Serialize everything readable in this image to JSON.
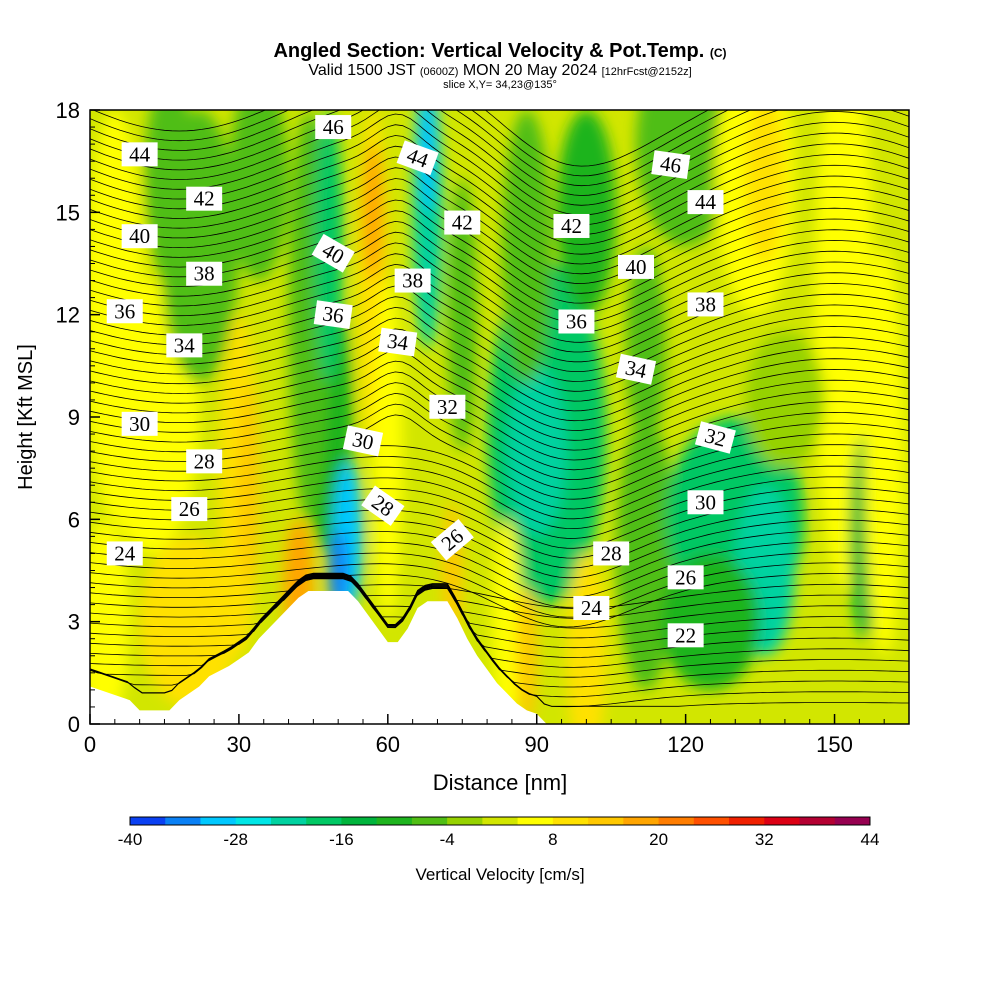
{
  "title": {
    "main": "Angled Section: Vertical Velocity & Pot.Temp.",
    "main_suffix": "(C)",
    "valid_prefix": "Valid 1500 JST",
    "valid_utc": "(0600Z)",
    "valid_date": "MON 20 May 2024",
    "forecast": "[12hrFcst@2152z]",
    "slice": "slice X,Y= 34,23@135°"
  },
  "colorbar": {
    "label": "Vertical Velocity [cm/s]",
    "tick_labels": [
      "-40",
      "-28",
      "-16",
      "-4",
      "8",
      "20",
      "32",
      "44"
    ],
    "tick_values": [
      -40,
      -28,
      -16,
      -4,
      8,
      20,
      32,
      44
    ],
    "levels": [
      -40,
      -36,
      -32,
      -28,
      -24,
      -20,
      -16,
      -12,
      -8,
      -4,
      0,
      4,
      8,
      12,
      16,
      20,
      24,
      28,
      32,
      36,
      40,
      44
    ],
    "colors": [
      "#0000ff",
      "#0a40f2",
      "#0a80f5",
      "#00c8ff",
      "#00e6e6",
      "#00d2a0",
      "#00c864",
      "#00b43c",
      "#1eb41e",
      "#50be14",
      "#96d200",
      "#d2e600",
      "#ffff00",
      "#ffe100",
      "#ffc800",
      "#ffa500",
      "#ff7d00",
      "#ff5000",
      "#f02000",
      "#dc0014",
      "#b40032",
      "#960050",
      "#780078",
      "#5a0096"
    ]
  },
  "chart_data": {
    "type": "heatmap",
    "title": "Angled Section: Vertical Velocity & Pot.Temp.",
    "xlabel": "Distance [nm]",
    "ylabel": "Height [Kft MSL]",
    "xlim": [
      0,
      165
    ],
    "ylim": [
      0,
      18
    ],
    "x_ticks": [
      0,
      30,
      60,
      90,
      120,
      150
    ],
    "y_ticks": [
      0,
      3,
      6,
      9,
      12,
      15,
      18
    ],
    "x_tick_labels": [
      "0",
      "30",
      "60",
      "90",
      "120",
      "150"
    ],
    "y_tick_labels": [
      "0",
      "3",
      "6",
      "9",
      "12",
      "15",
      "18"
    ],
    "filled_field": "Vertical Velocity [cm/s]",
    "contour_field": "Pot.Temp.",
    "terrain_profile": [
      [
        0,
        1.1
      ],
      [
        8,
        0.7
      ],
      [
        10,
        0.4
      ],
      [
        12,
        0.4
      ],
      [
        16,
        0.4
      ],
      [
        18,
        0.7
      ],
      [
        22,
        1.1
      ],
      [
        24,
        1.4
      ],
      [
        28,
        1.7
      ],
      [
        30,
        1.9
      ],
      [
        32,
        2.1
      ],
      [
        34,
        2.5
      ],
      [
        36,
        2.8
      ],
      [
        38,
        3.1
      ],
      [
        40,
        3.4
      ],
      [
        42,
        3.7
      ],
      [
        44,
        3.9
      ],
      [
        48,
        3.9
      ],
      [
        52,
        3.9
      ],
      [
        54,
        3.6
      ],
      [
        56,
        3.2
      ],
      [
        58,
        2.8
      ],
      [
        60,
        2.4
      ],
      [
        62,
        2.4
      ],
      [
        64,
        2.8
      ],
      [
        66,
        3.4
      ],
      [
        68,
        3.6
      ],
      [
        72,
        3.6
      ],
      [
        74,
        3.1
      ],
      [
        76,
        2.5
      ],
      [
        78,
        2.0
      ],
      [
        80,
        1.6
      ],
      [
        82,
        1.2
      ],
      [
        84,
        0.9
      ],
      [
        86,
        0.6
      ],
      [
        88,
        0.4
      ],
      [
        90,
        0.3
      ],
      [
        92,
        0.0
      ],
      [
        165,
        0.0
      ]
    ],
    "contour_labels": [
      {
        "text": "44",
        "x": 10,
        "y": 16.7,
        "rot": 0
      },
      {
        "text": "42",
        "x": 23,
        "y": 15.4,
        "rot": 0
      },
      {
        "text": "40",
        "x": 10,
        "y": 14.3,
        "rot": 0
      },
      {
        "text": "38",
        "x": 23,
        "y": 13.2,
        "rot": 0
      },
      {
        "text": "36",
        "x": 7,
        "y": 12.1,
        "rot": 0
      },
      {
        "text": "34",
        "x": 19,
        "y": 11.1,
        "rot": 0
      },
      {
        "text": "30",
        "x": 10,
        "y": 8.8,
        "rot": 0
      },
      {
        "text": "28",
        "x": 23,
        "y": 7.7,
        "rot": 0
      },
      {
        "text": "26",
        "x": 20,
        "y": 6.3,
        "rot": 0
      },
      {
        "text": "24",
        "x": 7,
        "y": 5.0,
        "rot": 0
      },
      {
        "text": "46",
        "x": 49,
        "y": 17.5,
        "rot": 0
      },
      {
        "text": "44",
        "x": 66,
        "y": 16.6,
        "rot": 20
      },
      {
        "text": "42",
        "x": 75,
        "y": 14.7,
        "rot": 0
      },
      {
        "text": "40",
        "x": 49,
        "y": 13.8,
        "rot": 30
      },
      {
        "text": "38",
        "x": 65,
        "y": 13.0,
        "rot": 0
      },
      {
        "text": "36",
        "x": 49,
        "y": 12.0,
        "rot": 8
      },
      {
        "text": "34",
        "x": 62,
        "y": 11.2,
        "rot": 8
      },
      {
        "text": "32",
        "x": 72,
        "y": 9.3,
        "rot": 0
      },
      {
        "text": "30",
        "x": 55,
        "y": 8.3,
        "rot": 12
      },
      {
        "text": "28",
        "x": 59,
        "y": 6.4,
        "rot": 35
      },
      {
        "text": "26",
        "x": 73,
        "y": 5.4,
        "rot": -40
      },
      {
        "text": "46",
        "x": 117,
        "y": 16.4,
        "rot": 8
      },
      {
        "text": "44",
        "x": 124,
        "y": 15.3,
        "rot": 0
      },
      {
        "text": "42",
        "x": 97,
        "y": 14.6,
        "rot": 0
      },
      {
        "text": "40",
        "x": 110,
        "y": 13.4,
        "rot": 0
      },
      {
        "text": "38",
        "x": 124,
        "y": 12.3,
        "rot": 0
      },
      {
        "text": "36",
        "x": 98,
        "y": 11.8,
        "rot": 0
      },
      {
        "text": "34",
        "x": 110,
        "y": 10.4,
        "rot": 12
      },
      {
        "text": "32",
        "x": 126,
        "y": 8.4,
        "rot": 15
      },
      {
        "text": "30",
        "x": 124,
        "y": 6.5,
        "rot": 0
      },
      {
        "text": "28",
        "x": 105,
        "y": 5.0,
        "rot": 0
      },
      {
        "text": "26",
        "x": 120,
        "y": 4.3,
        "rot": 0
      },
      {
        "text": "24",
        "x": 101,
        "y": 3.4,
        "rot": 0
      },
      {
        "text": "22",
        "x": 120,
        "y": 2.6,
        "rot": 0
      }
    ]
  }
}
